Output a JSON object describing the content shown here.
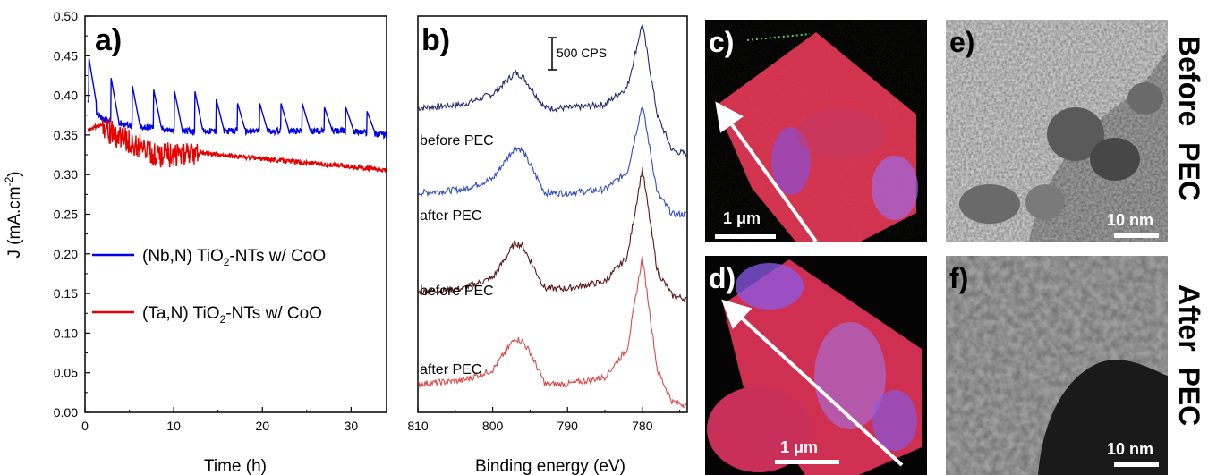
{
  "panel_a": {
    "label": "a)",
    "y_axis_label": "J (mA.cm",
    "y_axis_sup": "-2",
    "y_axis_close": ")",
    "x_axis_label": "Time (h)",
    "legend": [
      {
        "pre": "(Nb,N) TiO",
        "sub": "2",
        "post": "-NTs w/ CoO",
        "color": "#0000e6"
      },
      {
        "pre": "(Ta,N) TiO",
        "sub": "2",
        "post": "-NTs w/ CoO",
        "color": "#e60000"
      }
    ]
  },
  "panel_b": {
    "label": "b)",
    "x_axis_label": "Binding energy (eV)",
    "scale_bar": "500 CPS",
    "curve_labels": [
      "before PEC",
      "after PEC",
      "before PEC",
      "after PEC"
    ]
  },
  "panel_c": {
    "label": "c)",
    "scale": "1 μm"
  },
  "panel_d": {
    "label": "d)",
    "scale": "1 μm"
  },
  "panel_e": {
    "label": "e)",
    "scale": "10 nm"
  },
  "panel_f": {
    "label": "f)",
    "scale": "10 nm"
  },
  "side_labels": {
    "before": "Before  PEC",
    "after": "After  PEC"
  },
  "chart_data": [
    {
      "type": "line",
      "xlabel": "Time (h)",
      "ylabel": "J (mA.cm-2)",
      "xlim": [
        0,
        34
      ],
      "ylim": [
        0.0,
        0.5
      ],
      "x_ticks": [
        0,
        10,
        20,
        30
      ],
      "y_ticks": [
        0.0,
        0.05,
        0.1,
        0.15,
        0.2,
        0.25,
        0.3,
        0.35,
        0.4,
        0.45,
        0.5
      ],
      "series": [
        {
          "name": "(Nb,N) TiO2-NTs w/ CoO",
          "color": "#0000e6",
          "x": [
            0.3,
            2,
            4,
            6,
            8,
            10,
            12,
            15,
            20,
            25,
            30,
            34
          ],
          "y": [
            0.39,
            0.37,
            0.365,
            0.36,
            0.36,
            0.355,
            0.355,
            0.355,
            0.355,
            0.355,
            0.355,
            0.35
          ],
          "spikes_x": [
            0.4,
            2.9,
            5.3,
            7.7,
            10.1,
            12.4,
            14.8,
            17.2,
            19.7,
            22.1,
            24.5,
            27.0,
            29.4,
            31.8
          ],
          "spikes_y": [
            0.45,
            0.425,
            0.415,
            0.41,
            0.405,
            0.405,
            0.395,
            0.39,
            0.39,
            0.39,
            0.39,
            0.385,
            0.385,
            0.38
          ]
        },
        {
          "name": "(Ta,N) TiO2-NTs w/ CoO",
          "color": "#e60000",
          "x": [
            0.3,
            2,
            4,
            6,
            8,
            10,
            12,
            15,
            20,
            25,
            30,
            34
          ],
          "y": [
            0.355,
            0.365,
            0.35,
            0.34,
            0.33,
            0.33,
            0.33,
            0.325,
            0.32,
            0.315,
            0.31,
            0.305
          ]
        }
      ]
    },
    {
      "type": "line",
      "xlabel": "Binding energy (eV)",
      "xlim": [
        810,
        774
      ],
      "x_ticks": [
        810,
        800,
        790,
        780
      ],
      "series": [
        {
          "label": "before PEC",
          "color": "#232a6e",
          "offset": 0.4,
          "x": [
            810,
            804,
            800,
            797,
            796,
            795,
            793,
            790,
            785,
            782,
            780,
            778,
            776,
            774
          ],
          "y": [
            0.37,
            0.375,
            0.39,
            0.42,
            0.415,
            0.4,
            0.37,
            0.37,
            0.375,
            0.4,
            0.49,
            0.36,
            0.31,
            0.305
          ]
        },
        {
          "label": "after PEC",
          "color": "#2f4bc6",
          "offset": 0.26,
          "x": [
            810,
            804,
            800,
            797,
            796,
            795,
            793,
            790,
            785,
            782,
            780,
            778,
            776,
            774
          ],
          "y": [
            0.25,
            0.255,
            0.27,
            0.315,
            0.31,
            0.29,
            0.25,
            0.25,
            0.255,
            0.28,
            0.375,
            0.25,
            0.22,
            0.22
          ]
        },
        {
          "label": "before PEC",
          "color": "#5a1616",
          "offset": 0.12,
          "x": [
            810,
            804,
            800,
            797,
            796,
            795,
            793,
            790,
            785,
            782,
            780,
            778,
            776,
            774
          ],
          "y": [
            0.11,
            0.115,
            0.13,
            0.18,
            0.175,
            0.155,
            0.115,
            0.115,
            0.125,
            0.16,
            0.285,
            0.14,
            0.105,
            0.1
          ]
        },
        {
          "label": "after PEC",
          "color": "#d94b4b",
          "offset": 0.0,
          "x": [
            810,
            804,
            800,
            797,
            796,
            795,
            793,
            790,
            785,
            782,
            780,
            778,
            776,
            774
          ],
          "y": [
            -0.02,
            -0.015,
            0.0,
            0.045,
            0.04,
            0.025,
            -0.02,
            -0.02,
            -0.01,
            0.03,
            0.16,
            0.0,
            -0.045,
            -0.05
          ]
        }
      ]
    }
  ]
}
